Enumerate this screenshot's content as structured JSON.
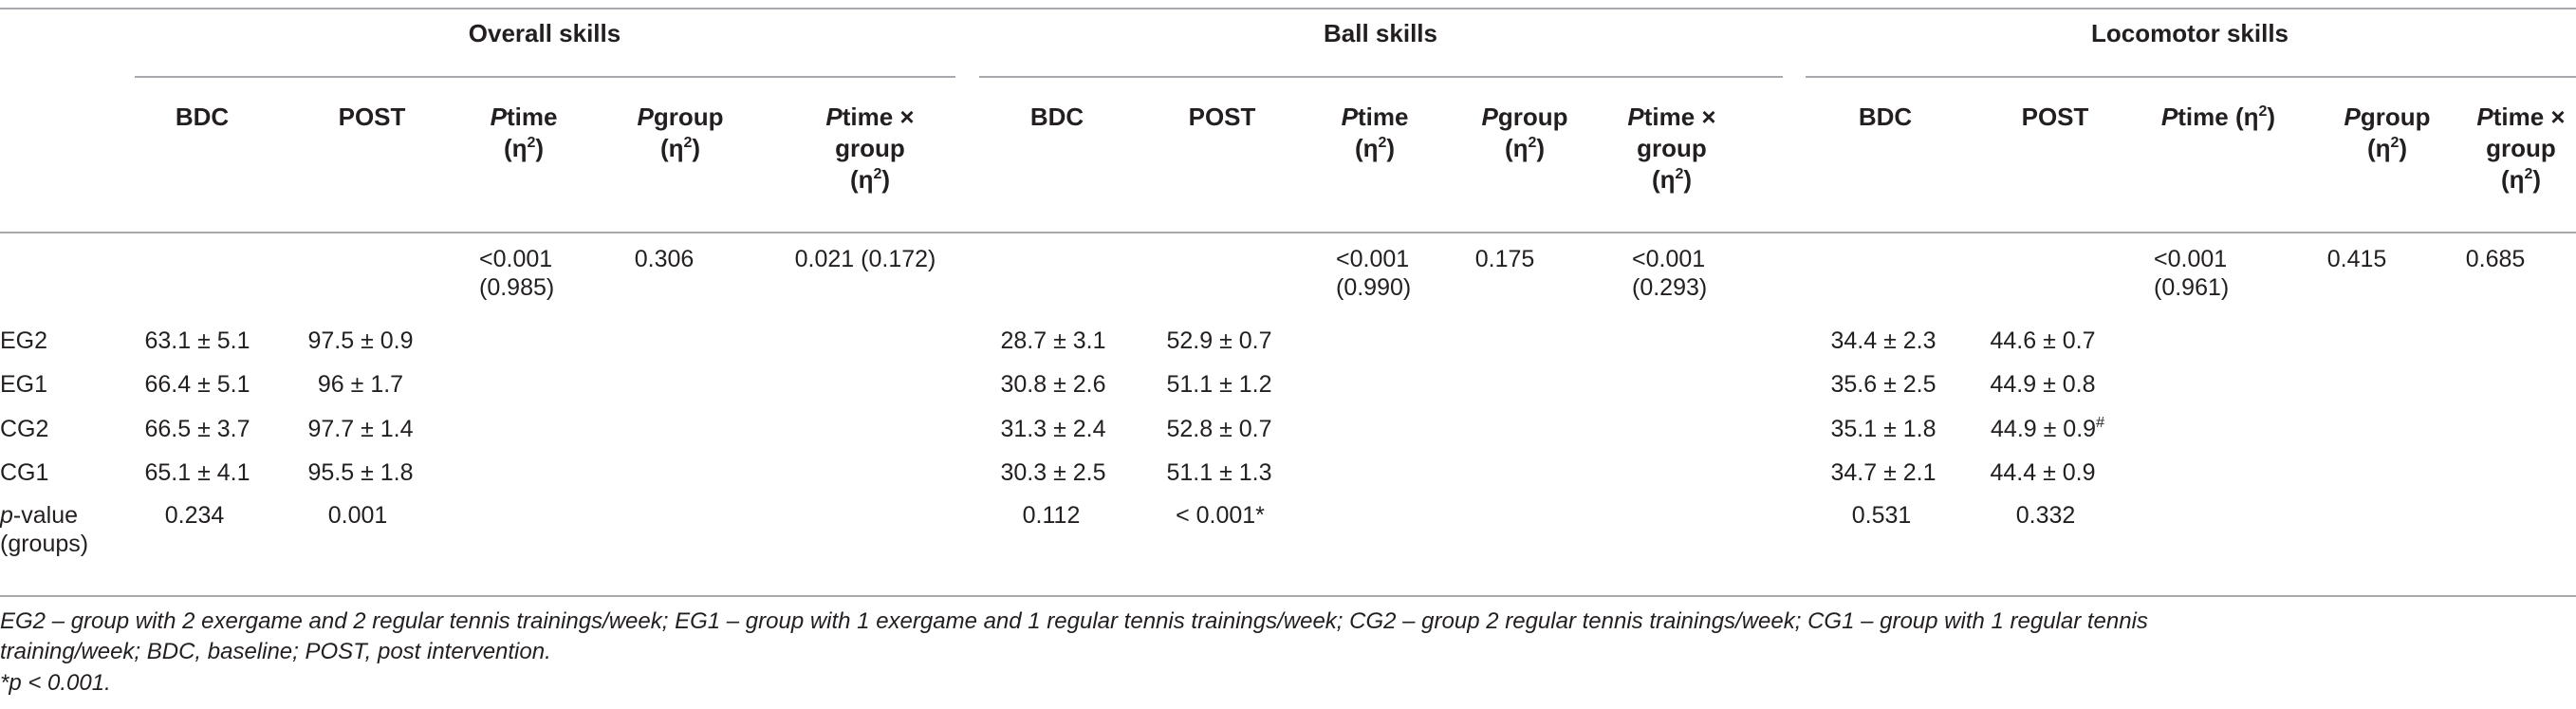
{
  "groups": {
    "overall": "Overall skills",
    "ball": "Ball skills",
    "locomotor": "Locomotor skills"
  },
  "subheaders": {
    "bdc": "BDC",
    "post": "POST",
    "p_italic": "P",
    "time": "time",
    "group": "group",
    "eta": "(η",
    "eta_close": ")",
    "sq": "2",
    "times_x": "time ×",
    "group_line": "group",
    "time_eta_inline": "time (η"
  },
  "stats": {
    "overall": {
      "ptime": "<0.001",
      "ptime_eta": "(0.985)",
      "pgroup": "0.306",
      "ptimexgroup": "0.021 (0.172)"
    },
    "ball": {
      "ptime": "<0.001",
      "ptime_eta": "(0.990)",
      "pgroup": "0.175",
      "ptimexgroup": "<0.001",
      "ptimexgroup_eta": "(0.293)"
    },
    "locomotor": {
      "ptime": "<0.001",
      "ptime_eta": "(0.961)",
      "pgroup": "0.415",
      "ptimexgroup": "0.685"
    }
  },
  "rows": [
    {
      "label": "EG2",
      "o_bdc": "63.1 ± 5.1",
      "o_post": "97.5 ± 0.9",
      "b_bdc": "28.7 ± 3.1",
      "b_post": "52.9 ± 0.7",
      "l_bdc": "34.4 ± 2.3",
      "l_post": "44.6 ± 0.7"
    },
    {
      "label": "EG1",
      "o_bdc": "66.4 ± 5.1",
      "o_post": "96 ± 1.7",
      "b_bdc": "30.8 ± 2.6",
      "b_post": "51.1 ± 1.2",
      "l_bdc": "35.6 ± 2.5",
      "l_post": "44.9 ± 0.8"
    },
    {
      "label": "CG2",
      "o_bdc": "66.5 ± 3.7",
      "o_post": "97.7 ± 1.4",
      "b_bdc": "31.3 ± 2.4",
      "b_post": "52.8 ± 0.7",
      "l_bdc": "35.1 ± 1.8",
      "l_post": "44.9 ± 0.9",
      "l_post_sup": "#"
    },
    {
      "label": "CG1",
      "o_bdc": "65.1 ± 4.1",
      "o_post": "95.5 ± 1.8",
      "b_bdc": "30.3 ± 2.5",
      "b_post": "51.1 ± 1.3",
      "l_bdc": "34.7 ± 2.1",
      "l_post": "44.4 ± 0.9"
    }
  ],
  "pvalue_row": {
    "label_italic": "p",
    "label_rest": "-value",
    "label_line2": "(groups)",
    "o_bdc": "0.234",
    "o_post": "0.001",
    "b_bdc": "0.112",
    "b_post": "< 0.001*",
    "l_bdc": "0.531",
    "l_post": "0.332"
  },
  "footnote": {
    "line1": "EG2 – group with 2 exergame and 2 regular tennis trainings/week; EG1 – group with 1 exergame and 1 regular tennis trainings/week; CG2 – group 2 regular tennis trainings/week; CG1 – group with 1 regular tennis",
    "line2": "training/week; BDC, baseline; POST, post intervention.",
    "line3": "*p < 0.001."
  }
}
